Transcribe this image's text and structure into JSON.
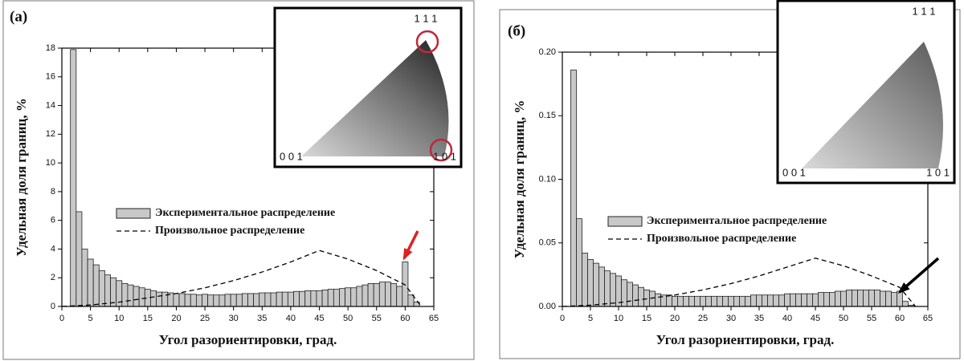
{
  "chart_data": [
    {
      "type": "bar",
      "panel_label": "(a)",
      "xlabel": "Угол разориентировки, град.",
      "ylabel": "Удельная доля границ, %",
      "xlim": [
        0,
        65
      ],
      "xticks": [
        0,
        5,
        10,
        15,
        20,
        25,
        30,
        35,
        40,
        45,
        50,
        55,
        60,
        65
      ],
      "ylim": [
        0,
        18
      ],
      "yticks": [
        0,
        2,
        4,
        6,
        8,
        10,
        12,
        14,
        16,
        18
      ],
      "inset_labels": [
        "1 1 1",
        "0 0 1",
        "1 0 1"
      ],
      "series": [
        {
          "name": "Экспериментальное распределение",
          "type": "bar",
          "color": "#c8c8c8",
          "x": [
            2,
            3,
            4,
            5,
            6,
            7,
            8,
            9,
            10,
            11,
            12,
            13,
            14,
            15,
            16,
            17,
            18,
            19,
            20,
            21,
            22,
            23,
            24,
            25,
            26,
            27,
            28,
            29,
            30,
            31,
            32,
            33,
            34,
            35,
            36,
            37,
            38,
            39,
            40,
            41,
            42,
            43,
            44,
            45,
            46,
            47,
            48,
            49,
            50,
            51,
            52,
            53,
            54,
            55,
            56,
            57,
            58,
            59,
            60,
            61,
            62
          ],
          "values": [
            17.9,
            6.6,
            4.0,
            3.3,
            2.9,
            2.5,
            2.2,
            2.0,
            1.8,
            1.6,
            1.5,
            1.4,
            1.3,
            1.2,
            1.1,
            1.0,
            1.0,
            0.95,
            0.9,
            0.9,
            0.85,
            0.85,
            0.8,
            0.85,
            0.8,
            0.8,
            0.8,
            0.85,
            0.85,
            0.85,
            0.9,
            0.9,
            0.9,
            0.95,
            0.95,
            0.95,
            1.0,
            1.0,
            1.0,
            1.05,
            1.05,
            1.1,
            1.1,
            1.1,
            1.15,
            1.2,
            1.2,
            1.25,
            1.3,
            1.3,
            1.4,
            1.5,
            1.6,
            1.6,
            1.7,
            1.7,
            1.6,
            1.4,
            3.1,
            0.8,
            0.3
          ]
        },
        {
          "name": "Произвольное распределение",
          "type": "line",
          "color": "#000000",
          "x": [
            0,
            5,
            10,
            15,
            20,
            25,
            30,
            35,
            40,
            45,
            50,
            55,
            60,
            62.8
          ],
          "values": [
            0,
            0.1,
            0.3,
            0.6,
            0.9,
            1.3,
            1.8,
            2.4,
            3.1,
            3.9,
            3.3,
            2.5,
            1.5,
            0
          ]
        }
      ]
    },
    {
      "type": "bar",
      "panel_label": "(б)",
      "xlabel": "Угол разориентировки, град.",
      "ylabel": "Удельная доля границ, %",
      "xlim": [
        0,
        65
      ],
      "xticks": [
        0,
        5,
        10,
        15,
        20,
        25,
        30,
        35,
        40,
        45,
        50,
        55,
        60,
        65
      ],
      "ylim": [
        0,
        0.2
      ],
      "yticks": [
        {
          "value": 0,
          "label": "0.00"
        },
        0.05,
        {
          "value": 0.1,
          "label": "0.10"
        },
        0.15,
        {
          "value": 0.2,
          "label": "0.20"
        }
      ],
      "inset_labels": [
        "1 1 1",
        "0 0 1",
        "1 0 1"
      ],
      "series": [
        {
          "name": "Экспериментальное распределение",
          "type": "bar",
          "color": "#c8c8c8",
          "x": [
            2,
            3,
            4,
            5,
            6,
            7,
            8,
            9,
            10,
            11,
            12,
            13,
            14,
            15,
            16,
            17,
            18,
            19,
            20,
            21,
            22,
            23,
            24,
            25,
            26,
            27,
            28,
            29,
            30,
            31,
            32,
            33,
            34,
            35,
            36,
            37,
            38,
            39,
            40,
            41,
            42,
            43,
            44,
            45,
            46,
            47,
            48,
            49,
            50,
            51,
            52,
            53,
            54,
            55,
            56,
            57,
            58,
            59,
            60,
            61,
            62
          ],
          "values": [
            0.186,
            0.069,
            0.042,
            0.037,
            0.034,
            0.031,
            0.028,
            0.026,
            0.024,
            0.021,
            0.019,
            0.017,
            0.015,
            0.013,
            0.012,
            0.01,
            0.009,
            0.009,
            0.008,
            0.008,
            0.008,
            0.008,
            0.008,
            0.008,
            0.008,
            0.008,
            0.008,
            0.008,
            0.008,
            0.008,
            0.008,
            0.008,
            0.009,
            0.009,
            0.009,
            0.009,
            0.009,
            0.009,
            0.01,
            0.01,
            0.01,
            0.01,
            0.01,
            0.01,
            0.011,
            0.011,
            0.011,
            0.012,
            0.012,
            0.013,
            0.013,
            0.013,
            0.013,
            0.013,
            0.013,
            0.012,
            0.012,
            0.011,
            0.012,
            0.004,
            0.001
          ]
        },
        {
          "name": "Произвольное распределение",
          "type": "line",
          "color": "#000000",
          "x": [
            0,
            5,
            10,
            15,
            20,
            25,
            30,
            35,
            40,
            45,
            50,
            55,
            60,
            62.8
          ],
          "values": [
            0,
            0.001,
            0.003,
            0.006,
            0.009,
            0.013,
            0.018,
            0.024,
            0.031,
            0.038,
            0.032,
            0.024,
            0.015,
            0
          ]
        }
      ]
    }
  ]
}
